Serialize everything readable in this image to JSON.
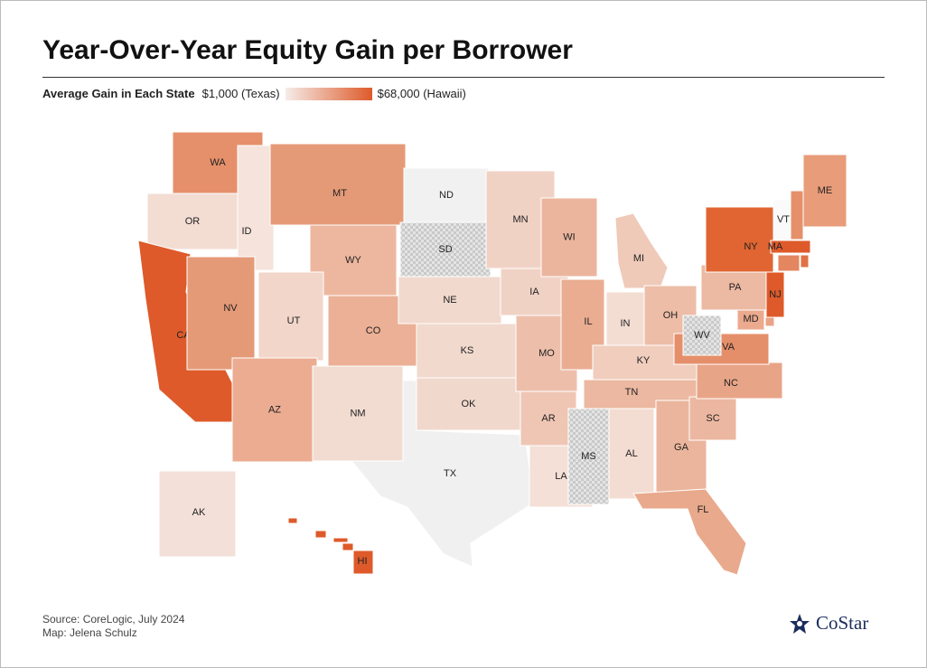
{
  "title": "Year-Over-Year Equity Gain per Borrower",
  "legend": {
    "label": "Average Gain in Each State",
    "min_label": "$1,000 (Texas)",
    "max_label": "$68,000 (Hawaii)",
    "min_color": "#f5ece8",
    "max_color": "#de5a2a"
  },
  "states": [
    {
      "label": "WA",
      "color": "#e5906b"
    },
    {
      "label": "OR",
      "color": "#f3ddd3"
    },
    {
      "label": "CA",
      "color": "#de5a2a"
    },
    {
      "label": "ID",
      "color": "#f5e3dc"
    },
    {
      "label": "NV",
      "color": "#e59a77"
    },
    {
      "label": "MT",
      "color": "#e59a77"
    },
    {
      "label": "WY",
      "color": "#edb79f"
    },
    {
      "label": "UT",
      "color": "#f2d6ca"
    },
    {
      "label": "CO",
      "color": "#ebb096"
    },
    {
      "label": "AZ",
      "color": "#ebac91"
    },
    {
      "label": "TX",
      "color": "#f0f0f0"
    },
    {
      "label": "NM",
      "color": "#f2dcd1"
    },
    {
      "label": "ND",
      "color": "#f1f1f1"
    },
    {
      "label": "SD",
      "color": "#dddddd",
      "hatched": true
    },
    {
      "label": "NE",
      "color": "#f1d9ce"
    },
    {
      "label": "KS",
      "color": "#f1d9ce"
    },
    {
      "label": "OK",
      "color": "#f1d8cc"
    },
    {
      "label": "MN",
      "color": "#f0d2c5"
    },
    {
      "label": "IA",
      "color": "#f0d2c5"
    },
    {
      "label": "MO",
      "color": "#edbfab"
    },
    {
      "label": "AR",
      "color": "#efc6b4"
    },
    {
      "label": "LA",
      "color": "#f4e0d7"
    },
    {
      "label": "WI",
      "color": "#ebb59d"
    },
    {
      "label": "IL",
      "color": "#eaad92"
    },
    {
      "label": "MI",
      "color": "#efcab9"
    },
    {
      "label": "IN",
      "color": "#f3ddd3"
    },
    {
      "label": "OH",
      "color": "#edbda7"
    },
    {
      "label": "KY",
      "color": "#f0cdbd"
    },
    {
      "label": "TN",
      "color": "#ecb8a1"
    },
    {
      "label": "MS",
      "color": "#dddddd",
      "hatched": true
    },
    {
      "label": "AL",
      "color": "#f3dcd1"
    },
    {
      "label": "GA",
      "color": "#ebb59d"
    },
    {
      "label": "FL",
      "color": "#e9a98c"
    },
    {
      "label": "SC",
      "color": "#ecb7a0"
    },
    {
      "label": "NC",
      "color": "#e8a487"
    },
    {
      "label": "VA",
      "color": "#e58f6a"
    },
    {
      "label": "WV",
      "color": "#dddddd",
      "hatched": true
    },
    {
      "label": "MD",
      "color": "#ebaa8e"
    },
    {
      "label": null,
      "color": "#e9a488"
    },
    {
      "label": "PA",
      "color": "#ecb9a2"
    },
    {
      "label": "NJ",
      "color": "#de5a2a"
    },
    {
      "label": "NY",
      "color": "#e06532"
    },
    {
      "label": "VT",
      "color": "#fafafa"
    },
    {
      "label": null,
      "color": "#e5906b"
    },
    {
      "label": "ME",
      "color": "#e89c7a"
    },
    {
      "label": "MA",
      "color": "#de5a2a"
    },
    {
      "label": null,
      "color": "#e4865f"
    },
    {
      "label": null,
      "color": "#e17044"
    },
    {
      "label": "AK",
      "color": "#f3e0d8"
    },
    {
      "label": "HI",
      "color": "#de5a2a"
    }
  ],
  "source": "Source: CoreLogic, July 2024",
  "credit": "Map: Jelena Schulz",
  "logo": "CoStar"
}
